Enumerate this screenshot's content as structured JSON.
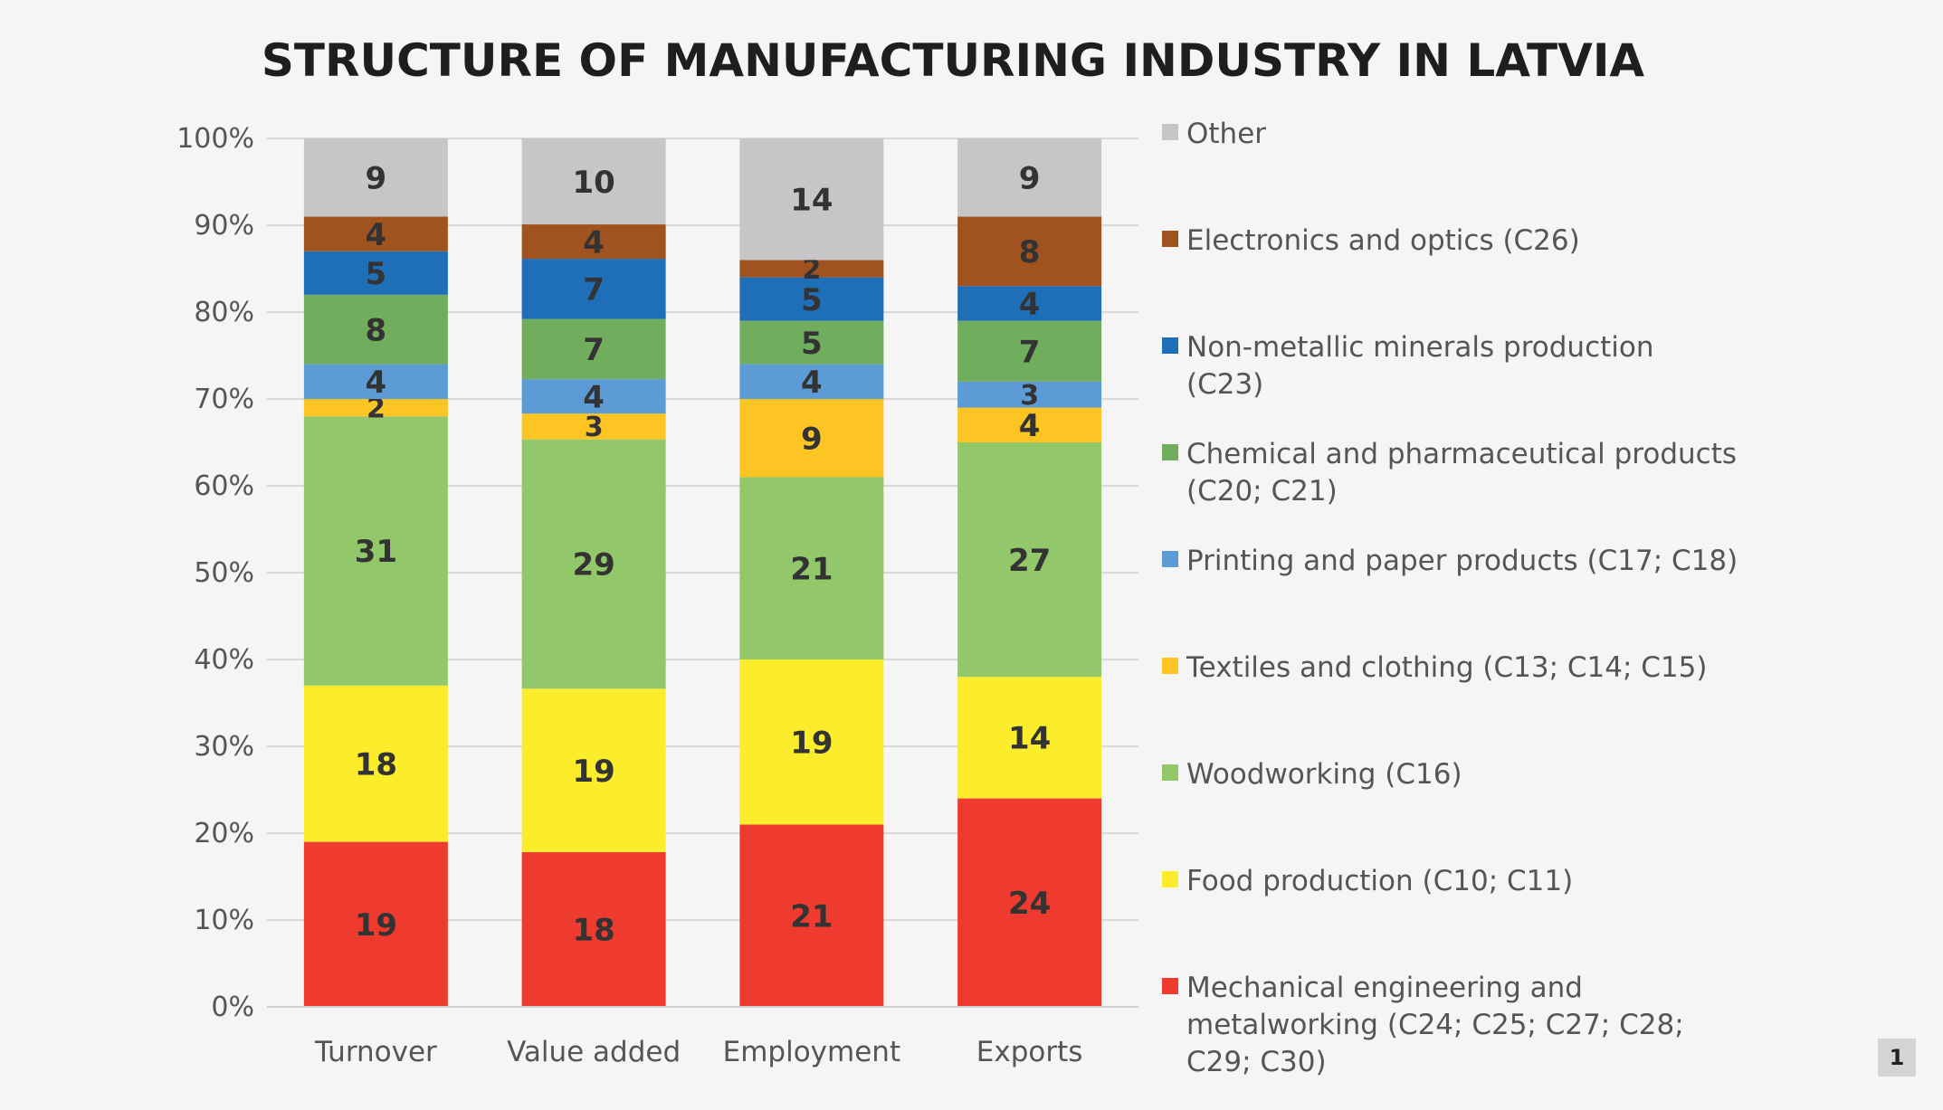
{
  "chart_data": {
    "type": "bar",
    "stacked": true,
    "percent_stacked": true,
    "title": "STRUCTURE OF MANUFACTURING INDUSTRY IN LATVIA",
    "categories": [
      "Turnover",
      "Value added",
      "Employment",
      "Exports"
    ],
    "y_ticks": [
      "0%",
      "10%",
      "20%",
      "30%",
      "40%",
      "50%",
      "60%",
      "70%",
      "80%",
      "90%",
      "100%"
    ],
    "ylim": [
      0,
      100
    ],
    "grid": true,
    "legend_position": "right",
    "series": [
      {
        "name": "Mechanical engineering and metalworking (C24; C25; C27; C28; C29; C30)",
        "legend_lines": [
          "Mechanical engineering and",
          "metalworking (C24; C25; C27; C28;",
          "C29; C30)"
        ],
        "color": "#ef3b2f",
        "values": [
          19,
          18,
          21,
          24
        ]
      },
      {
        "name": "Food production (C10; C11)",
        "legend_lines": [
          "Food production (C10; C11)"
        ],
        "color": "#fbed2b",
        "values": [
          18,
          19,
          19,
          14
        ]
      },
      {
        "name": "Woodworking (C16)",
        "legend_lines": [
          "Woodworking (C16)"
        ],
        "color": "#92c86a",
        "values": [
          31,
          29,
          21,
          27
        ]
      },
      {
        "name": "Textiles and clothing (C13; C14; C15)",
        "legend_lines": [
          "Textiles and clothing (C13; C14; C15)"
        ],
        "color": "#fcc524",
        "values": [
          2,
          3,
          9,
          4
        ]
      },
      {
        "name": "Printing and paper products (C17; C18)",
        "legend_lines": [
          "Printing and paper products (C17; C18)"
        ],
        "color": "#5c9bd5",
        "values": [
          4,
          4,
          4,
          3
        ]
      },
      {
        "name": "Chemical and pharmaceutical products (C20; C21)",
        "legend_lines": [
          "Chemical and pharmaceutical products",
          "(C20; C21)"
        ],
        "color": "#70ad5c",
        "values": [
          8,
          7,
          5,
          7
        ]
      },
      {
        "name": "Non-metallic minerals production (C23)",
        "legend_lines": [
          "Non-metallic minerals production",
          "(C23)"
        ],
        "color": "#1f6fb8",
        "values": [
          5,
          7,
          5,
          4
        ]
      },
      {
        "name": "Electronics and optics (C26)",
        "legend_lines": [
          "Electronics and optics (C26)"
        ],
        "color": "#a0521f",
        "values": [
          4,
          4,
          2,
          8
        ]
      },
      {
        "name": "Other",
        "legend_lines": [
          "Other"
        ],
        "color": "#c6c6c9",
        "values": [
          9,
          10,
          14,
          9
        ]
      }
    ]
  },
  "page_number": "1"
}
